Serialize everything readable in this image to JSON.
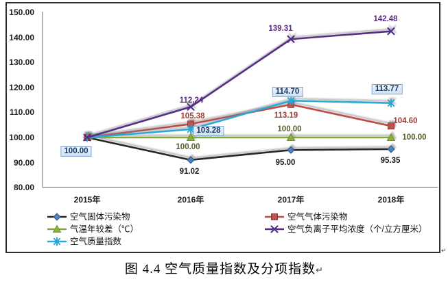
{
  "caption": {
    "text": "图 4.4 空气质量指数及分项指数",
    "return_mark": "↵"
  },
  "corner_return_mark": "↵",
  "colors": {
    "axis": "#a3a3a3",
    "frame_border": "#2e2e2e",
    "tick_text": "#1f1f1f",
    "label_box_border": "#7ba2cc",
    "label_box_text": "#17375e"
  },
  "chart_data": {
    "type": "line",
    "title": "图 4.4 空气质量指数及分项指数",
    "categories": [
      "2015年",
      "2016年",
      "2017年",
      "2018年"
    ],
    "y_axis": {
      "min": 80,
      "max": 150,
      "step": 10,
      "tick_labels": [
        "150.00",
        "140.00",
        "130.00",
        "120.00",
        "110.00",
        "100.00",
        "90.00",
        "80.00"
      ]
    },
    "grid": false,
    "legend_position": "bottom",
    "series": [
      {
        "name": "空气固体污染物",
        "marker": "diamond",
        "line_color": "#262626",
        "marker_fill": "#4f81bd",
        "marker_edge": "#2e5380",
        "label_color": "#1a1a1a",
        "values": [
          100.0,
          91.02,
          95.0,
          95.35
        ],
        "labels": [
          "",
          "91.02",
          "95.00",
          "95.35"
        ]
      },
      {
        "name": "空气气体污染物",
        "marker": "square",
        "line_color": "#be4b48",
        "marker_fill": "#c0504d",
        "marker_edge": "#943634",
        "label_color": "#9e3b33",
        "values": [
          100.0,
          105.38,
          113.19,
          104.6
        ],
        "labels": [
          "",
          "105.38",
          "113.19",
          "104.60"
        ]
      },
      {
        "name": "气温年较差（℃）",
        "marker": "triangle",
        "line_color": "#84a93a",
        "marker_fill": "#8db23a",
        "marker_edge": "#6e8f2d",
        "label_color": "#4f6228",
        "values": [
          100.0,
          100.0,
          100.0,
          100.0
        ],
        "labels": [
          "",
          "100.00",
          "100.00",
          "100.00"
        ]
      },
      {
        "name": "空气负离子平均浓度（个/立方厘米）",
        "marker": "x",
        "line_color": "#542e87",
        "marker_fill": "#542e87",
        "marker_edge": "#542e87",
        "label_color": "#5b2a85",
        "values": [
          100.0,
          112.24,
          139.31,
          142.48
        ],
        "labels": [
          "",
          "112.24",
          "139.31",
          "142.48"
        ]
      },
      {
        "name": "空气质量指数",
        "marker": "asterisk",
        "line_color": "#2aa8d8",
        "marker_fill": "#2aa8d8",
        "marker_edge": "#2aa8d8",
        "label_color": "#17375e",
        "boxed_labels": true,
        "values": [
          100.0,
          103.28,
          114.7,
          113.77
        ],
        "labels": [
          "100.00",
          "103.28",
          "114.70",
          "113.77"
        ]
      }
    ]
  }
}
